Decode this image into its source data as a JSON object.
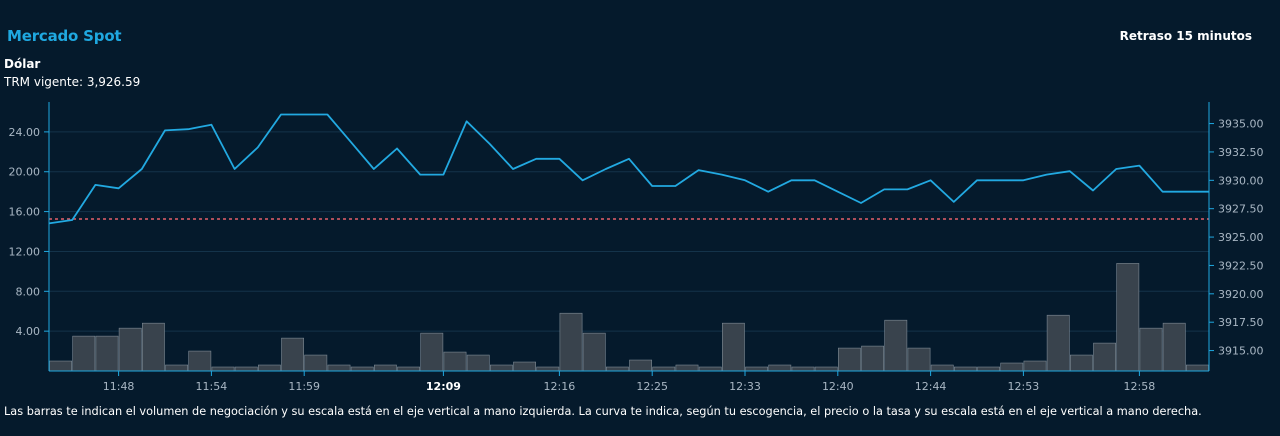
{
  "header": {
    "title": "Mercado Spot",
    "delay_label": "Retraso 15 minutos",
    "currency": "Dólar",
    "trm_label": "TRM vigente: 3,926.59"
  },
  "footnote": "Las barras te indican el volumen de negociación y su escala está en el eje vertical a mano izquierda. La curva te indica, según tu escogencia, el precio o la tasa y su escala está en el eje vertical a mano derecha.",
  "colors": {
    "background": "#051a2c",
    "line": "#22a9e1",
    "bar_fill": "#39434d",
    "bar_stroke": "#7e8a95",
    "reference": "#e4606a",
    "axis": "#1fa8e0",
    "grid": "#14334a"
  },
  "chart_data": {
    "type": "bar+line",
    "left_axis": {
      "ticks": [
        "4.00",
        "8.00",
        "12.00",
        "16.00",
        "20.00",
        "24.00"
      ],
      "ylim": [
        0,
        27
      ]
    },
    "right_axis": {
      "ticks": [
        "3915.00",
        "3917.50",
        "3920.00",
        "3922.50",
        "3925.00",
        "3927.50",
        "3930.00",
        "3932.50",
        "3935.00"
      ],
      "ylim": [
        3913.2,
        3936.9
      ]
    },
    "x_ticks": [
      {
        "label": "11:48",
        "index": 3,
        "bold": false
      },
      {
        "label": "11:54",
        "index": 7,
        "bold": false
      },
      {
        "label": "11:59",
        "index": 11,
        "bold": false
      },
      {
        "label": "12:09",
        "index": 17,
        "bold": true
      },
      {
        "label": "12:16",
        "index": 22,
        "bold": false
      },
      {
        "label": "12:25",
        "index": 26,
        "bold": false
      },
      {
        "label": "12:33",
        "index": 30,
        "bold": false
      },
      {
        "label": "12:40",
        "index": 34,
        "bold": false
      },
      {
        "label": "12:44",
        "index": 38,
        "bold": false
      },
      {
        "label": "12:53",
        "index": 42,
        "bold": false
      },
      {
        "label": "12:58",
        "index": 47,
        "bold": false
      }
    ],
    "volume": [
      1.0,
      3.5,
      3.5,
      4.3,
      4.8,
      0.6,
      2.0,
      0.4,
      0.4,
      0.6,
      3.3,
      1.6,
      0.6,
      0.4,
      0.6,
      0.4,
      3.8,
      1.9,
      1.6,
      0.6,
      0.9,
      0.4,
      5.8,
      3.8,
      0.4,
      1.1,
      0.4,
      0.6,
      0.4,
      4.8,
      0.4,
      0.6,
      0.4,
      0.4,
      2.3,
      2.5,
      5.1,
      2.3,
      0.6,
      0.4,
      0.4,
      0.8,
      1.0,
      5.6,
      1.6,
      2.8,
      10.8,
      4.3,
      4.8,
      0.6
    ],
    "price": [
      3926.2,
      3926.5,
      3929.6,
      3929.3,
      3931.0,
      3934.4,
      3934.5,
      3934.9,
      3931.0,
      3932.9,
      3935.8,
      3935.8,
      3935.8,
      3933.4,
      3931.0,
      3932.8,
      3930.5,
      3930.5,
      3935.2,
      3933.2,
      3931.0,
      3931.9,
      3931.9,
      3930.0,
      3931.0,
      3931.9,
      3929.5,
      3929.5,
      3930.9,
      3930.5,
      3930.0,
      3929.0,
      3930.0,
      3930.0,
      3929.0,
      3928.0,
      3929.2,
      3929.2,
      3930.0,
      3928.1,
      3930.0,
      3930.0,
      3930.0,
      3930.5,
      3930.8,
      3929.1,
      3931.0,
      3931.3,
      3929.0,
      3929.0,
      3929.0
    ],
    "reference_price": 3926.59
  }
}
